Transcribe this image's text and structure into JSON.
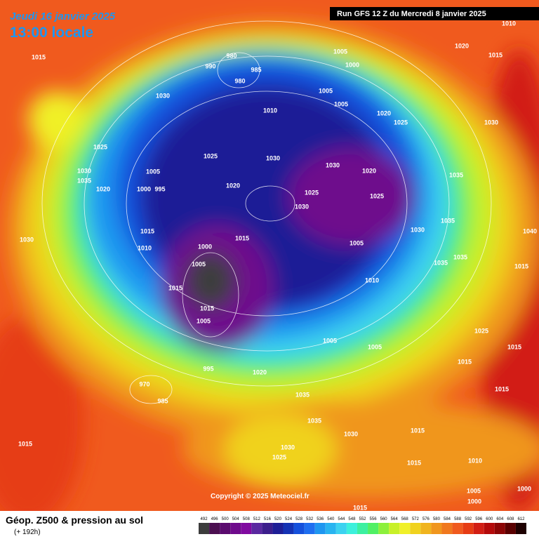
{
  "header": {
    "date": "Jeudi 16 janvier 2025",
    "time": "13:00 locale",
    "run_info": "Run GFS 12 Z du Mercredi 8 janvier 2025"
  },
  "footer": {
    "title": "Géop. Z500 & pression au sol",
    "subtitle": "(+ 192h)",
    "copyright": "Copyright © 2025 Meteociel.fr"
  },
  "scale": {
    "values": [
      492,
      496,
      500,
      504,
      508,
      512,
      516,
      520,
      524,
      528,
      532,
      536,
      540,
      544,
      548,
      552,
      556,
      560,
      564,
      568,
      572,
      576,
      580,
      584,
      588,
      592,
      596,
      600,
      604,
      608,
      612
    ],
    "colors": [
      "#3c3c3c",
      "#4b0f50",
      "#5a0a6e",
      "#6e0a8c",
      "#800aa0",
      "#5a28a0",
      "#3c1e8c",
      "#1e1e96",
      "#1432b4",
      "#1450dc",
      "#1e6ef0",
      "#1e96f0",
      "#28b4f0",
      "#3cd2f0",
      "#3cf0dc",
      "#3cf0a0",
      "#50f064",
      "#8cf03c",
      "#c8f028",
      "#f0f028",
      "#f0d21e",
      "#f0b41e",
      "#f0961e",
      "#f0781e",
      "#f05a1e",
      "#e63c14",
      "#d21e14",
      "#b40a0a",
      "#8c0505",
      "#5a0000",
      "#1e0000"
    ]
  },
  "isobar_labels": [
    "1010",
    "1020",
    "1015",
    "1015",
    "980",
    "990",
    "985",
    "980",
    "1005",
    "1000",
    "1030",
    "1005",
    "1005",
    "1010",
    "1020",
    "1025",
    "1030",
    "1025",
    "1025",
    "1030",
    "1030",
    "1020",
    "1035",
    "1030",
    "1005",
    "1035",
    "1020",
    "1000",
    "995",
    "1020",
    "1025",
    "1025",
    "1030",
    "1035",
    "1030",
    "1040",
    "1015",
    "1015",
    "1005",
    "1030",
    "1010",
    "1000",
    "1035",
    "1035",
    "1005",
    "1010",
    "1015",
    "1015",
    "1015",
    "1005",
    "1025",
    "1005",
    "1005",
    "1015",
    "1015",
    "995",
    "1020",
    "970",
    "985",
    "1035",
    "1035",
    "1015",
    "1015",
    "1030",
    "1030",
    "1025",
    "1015",
    "1015",
    "1010",
    "1005",
    "1000",
    "1015",
    "1000"
  ]
}
